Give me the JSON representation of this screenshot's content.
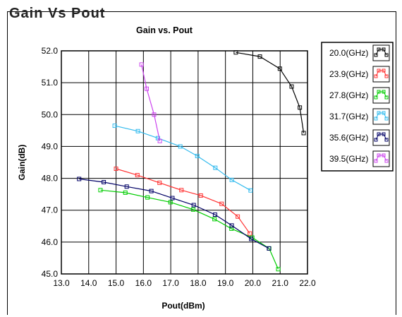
{
  "window": {
    "top_label": "Gain Vs Pout"
  },
  "legend": {
    "colors": {
      "box_border": "#000000"
    }
  },
  "chart_data": {
    "type": "line",
    "title": "Gain vs. Pout",
    "xlabel": "Pout(dBm)",
    "ylabel": "Gain(dB)",
    "xlim": [
      13.0,
      22.0
    ],
    "ylim": [
      45.0,
      52.0
    ],
    "xticks": [
      "13.0",
      "14.0",
      "15.0",
      "16.0",
      "17.0",
      "18.0",
      "19.0",
      "20.0",
      "21.0",
      "22.0"
    ],
    "yticks": [
      "45.0",
      "46.0",
      "47.0",
      "48.0",
      "49.0",
      "50.0",
      "51.0",
      "52.0"
    ],
    "grid": true,
    "legend_position": "right",
    "series": [
      {
        "name": "20.0(GHz)",
        "color": "#000000",
        "x": [
          19.38,
          20.26,
          20.99,
          21.42,
          21.72,
          21.86
        ],
        "y": [
          51.95,
          51.82,
          51.44,
          50.88,
          50.22,
          49.42
        ]
      },
      {
        "name": "23.9(GHz)",
        "color": "#ff3333",
        "x": [
          15.0,
          15.78,
          16.59,
          17.39,
          18.1,
          18.86,
          19.45,
          19.89
        ],
        "y": [
          48.3,
          48.1,
          47.86,
          47.63,
          47.46,
          47.2,
          46.8,
          46.27
        ]
      },
      {
        "name": "27.8(GHz)",
        "color": "#00cc00",
        "x": [
          14.43,
          15.34,
          16.15,
          16.99,
          17.82,
          18.6,
          19.22,
          19.98,
          20.6,
          20.93
        ],
        "y": [
          47.63,
          47.55,
          47.4,
          47.25,
          47.02,
          46.72,
          46.42,
          46.14,
          45.8,
          45.15
        ]
      },
      {
        "name": "31.7(GHz)",
        "color": "#33bbee",
        "x": [
          14.95,
          15.8,
          16.53,
          17.35,
          17.97,
          18.63,
          19.23,
          19.92
        ],
        "y": [
          49.65,
          49.48,
          49.26,
          49.0,
          48.7,
          48.33,
          47.95,
          47.62
        ]
      },
      {
        "name": "35.6(GHz)",
        "color": "#000066",
        "x": [
          13.65,
          14.55,
          15.39,
          16.29,
          17.06,
          17.84,
          18.62,
          19.23,
          19.94,
          20.59
        ],
        "y": [
          47.98,
          47.88,
          47.74,
          47.6,
          47.38,
          47.16,
          46.86,
          46.52,
          46.1,
          45.8
        ]
      },
      {
        "name": "39.5(GHz)",
        "color": "#cc44ee",
        "x": [
          15.93,
          16.12,
          16.39,
          16.6
        ],
        "y": [
          51.57,
          50.81,
          50.0,
          49.17
        ]
      }
    ]
  }
}
